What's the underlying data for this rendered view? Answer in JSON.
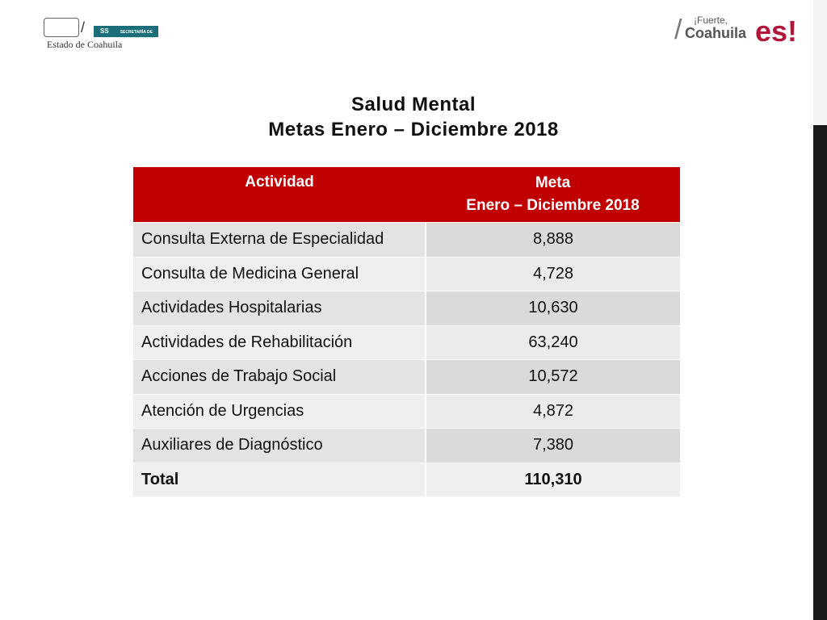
{
  "header": {
    "left_logo": {
      "badge": "SS",
      "badge_text": "SECRETARÍA DE SALUD",
      "caption": "Estado de Coahuila"
    },
    "right_logo": {
      "top": "¡Fuerte,",
      "main": "Coahuila",
      "end": "es!"
    }
  },
  "title": {
    "line1": "Salud Mental",
    "line2": "Metas Enero – Diciembre 2018"
  },
  "table": {
    "columns": [
      "Actividad",
      "Meta",
      "Enero – Diciembre 2018"
    ],
    "rows": [
      [
        "Consulta Externa de Especialidad",
        "8,888"
      ],
      [
        "Consulta de Medicina General",
        "4,728"
      ],
      [
        "Actividades Hospitalarias",
        "10,630"
      ],
      [
        "Actividades de Rehabilitación",
        "63,240"
      ],
      [
        "Acciones de Trabajo Social",
        "10,572"
      ],
      [
        "Atención de Urgencias",
        "4,872"
      ],
      [
        "Auxiliares de Diagnóstico",
        "7,380"
      ]
    ],
    "total": [
      "Total",
      "110,310"
    ]
  }
}
